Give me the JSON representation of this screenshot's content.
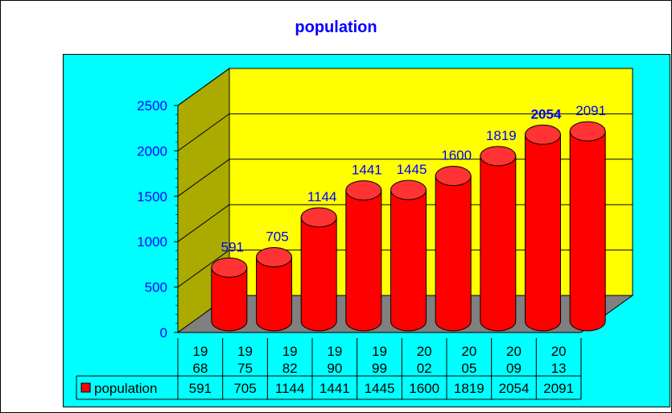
{
  "chart_data": {
    "type": "bar",
    "title": "population",
    "categories": [
      "1968",
      "1975",
      "1982",
      "1990",
      "1999",
      "2002",
      "2005",
      "2009",
      "2013"
    ],
    "category_lines": [
      [
        "19",
        "68"
      ],
      [
        "19",
        "75"
      ],
      [
        "19",
        "82"
      ],
      [
        "19",
        "90"
      ],
      [
        "19",
        "99"
      ],
      [
        "20",
        "02"
      ],
      [
        "20",
        "05"
      ],
      [
        "20",
        "09"
      ],
      [
        "20",
        "13"
      ]
    ],
    "series": [
      {
        "name": "population",
        "values": [
          591,
          705,
          1144,
          1441,
          1445,
          1600,
          1819,
          2054,
          2091
        ]
      }
    ],
    "data_labels": [
      "591",
      "705",
      "1144",
      "1441",
      "1445",
      "1600",
      "1819",
      "2054",
      "2091"
    ],
    "bold_label_index": 7,
    "y_ticks": [
      0,
      500,
      1000,
      1500,
      2000,
      2500
    ],
    "ylim": [
      0,
      2500
    ],
    "grid": true,
    "data_table": true,
    "style": "3d-cylinder",
    "colors": {
      "bars": "#ff0000",
      "bar_top": "#ff3333",
      "back_wall": "#ffff00",
      "side_wall": "#aaaa00",
      "floor": "#808080",
      "plot_background": "#00ffff",
      "title": "#0000ff",
      "labels": "#0000ff"
    }
  }
}
